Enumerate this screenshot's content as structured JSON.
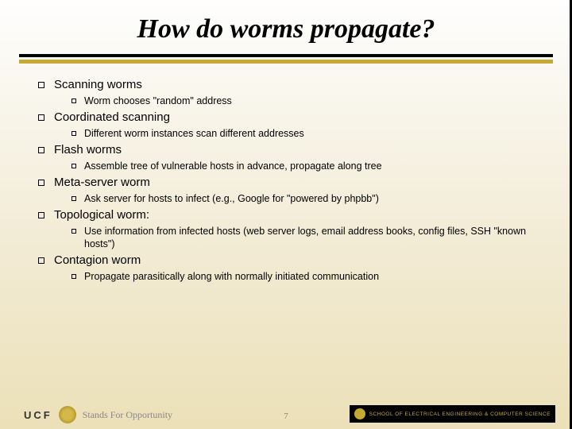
{
  "title": "How do worms propagate?",
  "items": [
    {
      "label": "Scanning worms",
      "sub": [
        {
          "text": "Worm chooses \"random\" address"
        }
      ]
    },
    {
      "label": "Coordinated scanning",
      "sub": [
        {
          "text": "Different worm instances scan different addresses"
        }
      ]
    },
    {
      "label": "Flash worms",
      "sub": [
        {
          "text": "Assemble tree of vulnerable hosts in advance, propagate along tree"
        }
      ]
    },
    {
      "label": "Meta-server worm",
      "sub": [
        {
          "text": "Ask server for hosts to infect (e.g., Google for \"powered by phpbb\")"
        }
      ]
    },
    {
      "label": "Topological worm:",
      "sub": [
        {
          "text": "Use information from infected hosts (web server logs, email address books, config files, SSH \"known hosts\")"
        }
      ]
    },
    {
      "label": "Contagion worm",
      "sub": [
        {
          "text": "Propagate parasitically along with normally initiated communication"
        }
      ]
    }
  ],
  "footer": {
    "ucf": "UCF",
    "tagline": "Stands For Opportunity",
    "page": "7",
    "dept": "SCHOOL OF ELECTRICAL ENGINEERING & COMPUTER SCIENCE"
  },
  "colors": {
    "accent": "#c5a933",
    "black": "#000000"
  }
}
